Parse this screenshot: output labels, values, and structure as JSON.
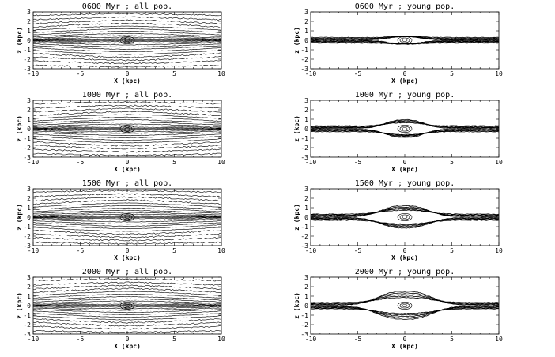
{
  "chart_data": [
    {
      "type": "contour",
      "title": "0600 Myr ; all pop.",
      "xlabel": "X (kpc)",
      "ylabel": "z (kpc)",
      "xlim": [
        -10,
        10
      ],
      "ylim": [
        -3,
        3
      ],
      "xticks": [
        "-10",
        "-5",
        "0",
        "5",
        "10"
      ],
      "yticks": [
        "3",
        "2",
        "1",
        "0",
        "-1",
        "-2",
        "-3"
      ],
      "population": "all",
      "time_myr": 600,
      "contour_half_heights_kpc": [
        0.05,
        0.16,
        0.32,
        0.5,
        0.72,
        0.96,
        1.22,
        1.5,
        1.8,
        2.12,
        2.45,
        2.8
      ],
      "bulge_height_kpc": 0,
      "bulge_half_width_kpc": 1
    },
    {
      "type": "contour",
      "title": "0600 Myr ; young pop.",
      "xlabel": "X (kpc)",
      "ylabel": "z (kpc)",
      "xlim": [
        -10,
        10
      ],
      "ylim": [
        -3,
        3
      ],
      "xticks": [
        "-10",
        "-5",
        "0",
        "5",
        "10"
      ],
      "yticks": [
        "3",
        "2",
        "1",
        "0",
        "-1",
        "-2",
        "-3"
      ],
      "population": "young",
      "time_myr": 600,
      "contour_half_heights_kpc": [
        0.04,
        0.09,
        0.15,
        0.22,
        0.3
      ],
      "bulge_height_kpc": 0.35,
      "bulge_half_width_kpc": 2.2
    },
    {
      "type": "contour",
      "title": "1000 Myr ; all pop.",
      "xlabel": "X (kpc)",
      "ylabel": "z (kpc)",
      "xlim": [
        -10,
        10
      ],
      "ylim": [
        -3,
        3
      ],
      "xticks": [
        "-10",
        "-5",
        "0",
        "5",
        "10"
      ],
      "yticks": [
        "3",
        "2",
        "1",
        "0",
        "-1",
        "-2",
        "-3"
      ],
      "population": "all",
      "time_myr": 1000,
      "contour_half_heights_kpc": [
        0.05,
        0.16,
        0.32,
        0.5,
        0.72,
        0.96,
        1.22,
        1.5,
        1.8,
        2.12,
        2.45,
        2.8
      ],
      "bulge_height_kpc": 0,
      "bulge_half_width_kpc": 1
    },
    {
      "type": "contour",
      "title": "1000 Myr ; young pop.",
      "xlabel": "X (kpc)",
      "ylabel": "z (kpc)",
      "xlim": [
        -10,
        10
      ],
      "ylim": [
        -3,
        3
      ],
      "xticks": [
        "-10",
        "-5",
        "0",
        "5",
        "10"
      ],
      "yticks": [
        "3",
        "2",
        "1",
        "0",
        "-1",
        "-2",
        "-3"
      ],
      "population": "young",
      "time_myr": 1000,
      "contour_half_heights_kpc": [
        0.05,
        0.1,
        0.16,
        0.23,
        0.31
      ],
      "bulge_height_kpc": 0.9,
      "bulge_half_width_kpc": 2.6
    },
    {
      "type": "contour",
      "title": "1500 Myr ; all pop.",
      "xlabel": "X (kpc)",
      "ylabel": "z (kpc)",
      "xlim": [
        -10,
        10
      ],
      "ylim": [
        -3,
        3
      ],
      "xticks": [
        "-10",
        "-5",
        "0",
        "5",
        "10"
      ],
      "yticks": [
        "3",
        "2",
        "1",
        "0",
        "-1",
        "-2",
        "-3"
      ],
      "population": "all",
      "time_myr": 1500,
      "contour_half_heights_kpc": [
        0.05,
        0.16,
        0.32,
        0.5,
        0.72,
        0.96,
        1.22,
        1.5,
        1.8,
        2.12,
        2.45,
        2.8
      ],
      "bulge_height_kpc": 0,
      "bulge_half_width_kpc": 1
    },
    {
      "type": "contour",
      "title": "1500 Myr ; young pop.",
      "xlabel": "X (kpc)",
      "ylabel": "z (kpc)",
      "xlim": [
        -10,
        10
      ],
      "ylim": [
        -3,
        3
      ],
      "xticks": [
        "-10",
        "-5",
        "0",
        "5",
        "10"
      ],
      "yticks": [
        "3",
        "2",
        "1",
        "0",
        "-1",
        "-2",
        "-3"
      ],
      "population": "young",
      "time_myr": 1500,
      "contour_half_heights_kpc": [
        0.05,
        0.11,
        0.17,
        0.24,
        0.32
      ],
      "bulge_height_kpc": 1.15,
      "bulge_half_width_kpc": 3.2
    },
    {
      "type": "contour",
      "title": "2000 Myr ; all pop.",
      "xlabel": "X (kpc)",
      "ylabel": "z (kpc)",
      "xlim": [
        -10,
        10
      ],
      "ylim": [
        -3,
        3
      ],
      "xticks": [
        "-10",
        "-5",
        "0",
        "5",
        "10"
      ],
      "yticks": [
        "3",
        "2",
        "1",
        "0",
        "-1",
        "-2",
        "-3"
      ],
      "population": "all",
      "time_myr": 2000,
      "contour_half_heights_kpc": [
        0.05,
        0.16,
        0.32,
        0.5,
        0.72,
        0.96,
        1.22,
        1.5,
        1.8,
        2.12,
        2.45,
        2.8
      ],
      "bulge_height_kpc": 0,
      "bulge_half_width_kpc": 1
    },
    {
      "type": "contour",
      "title": "2000 Myr ; young pop.",
      "xlabel": "X (kpc)",
      "ylabel": "z (kpc)",
      "xlim": [
        -10,
        10
      ],
      "ylim": [
        -3,
        3
      ],
      "xticks": [
        "-10",
        "-5",
        "0",
        "5",
        "10"
      ],
      "yticks": [
        "3",
        "2",
        "1",
        "0",
        "-1",
        "-2",
        "-3"
      ],
      "population": "young",
      "time_myr": 2000,
      "contour_half_heights_kpc": [
        0.06,
        0.12,
        0.18,
        0.25,
        0.33
      ],
      "bulge_height_kpc": 1.45,
      "bulge_half_width_kpc": 3.6
    }
  ]
}
